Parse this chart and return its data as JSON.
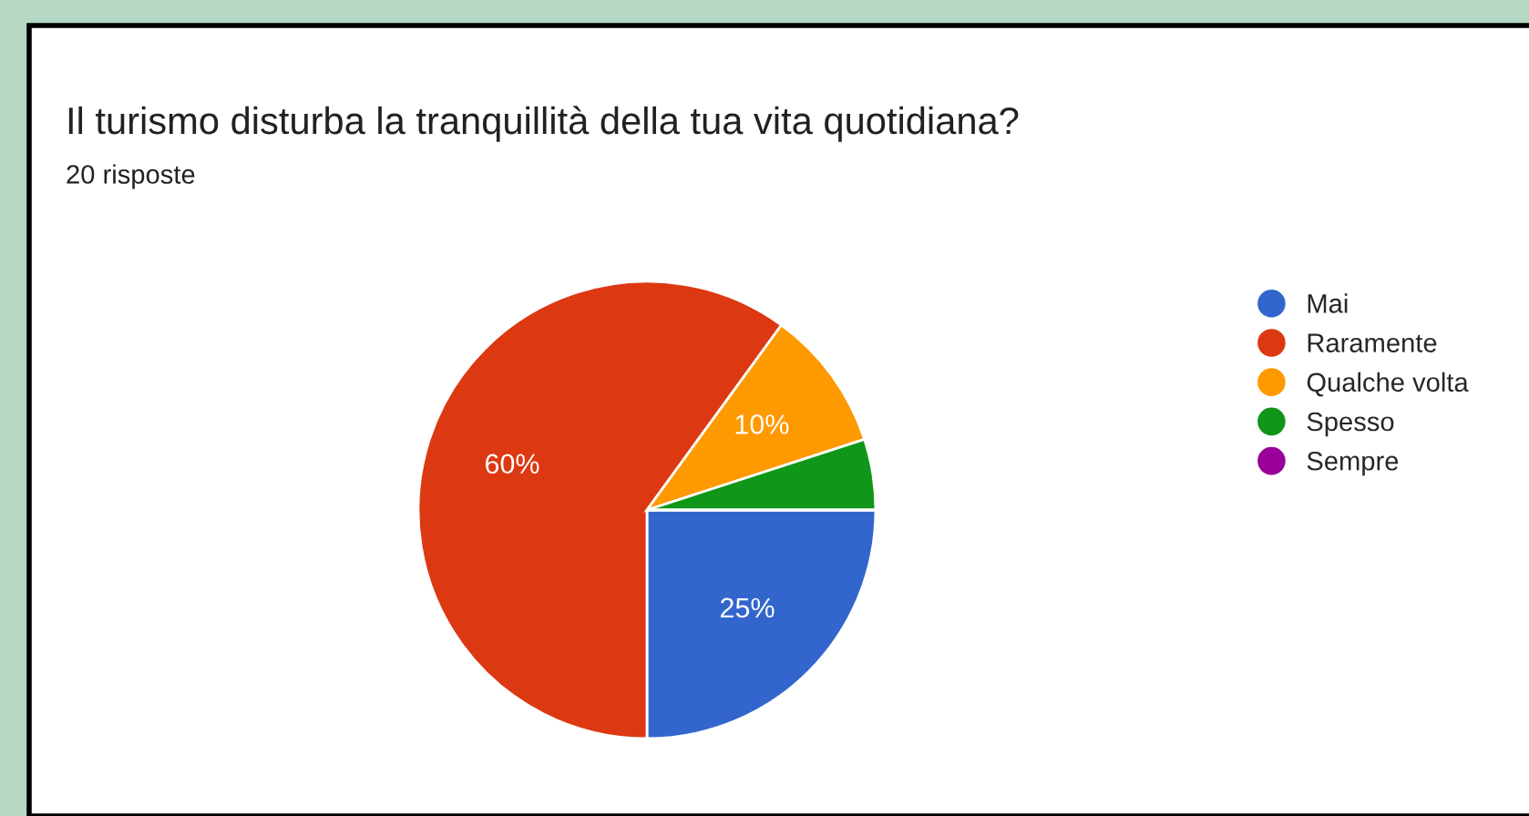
{
  "chart_data": {
    "type": "pie",
    "title": "Il turismo disturba la tranquillità della tua vita quotidiana?",
    "subtitle": "20 risposte",
    "categories": [
      "Mai",
      "Raramente",
      "Qualche volta",
      "Spesso",
      "Sempre"
    ],
    "values": [
      25,
      60,
      10,
      5,
      0
    ],
    "colors": [
      "#3366cc",
      "#dc3912",
      "#ff9900",
      "#109618",
      "#990099"
    ],
    "value_labels": [
      "25%",
      "60%",
      "10%",
      null,
      null
    ],
    "legend": "right"
  }
}
